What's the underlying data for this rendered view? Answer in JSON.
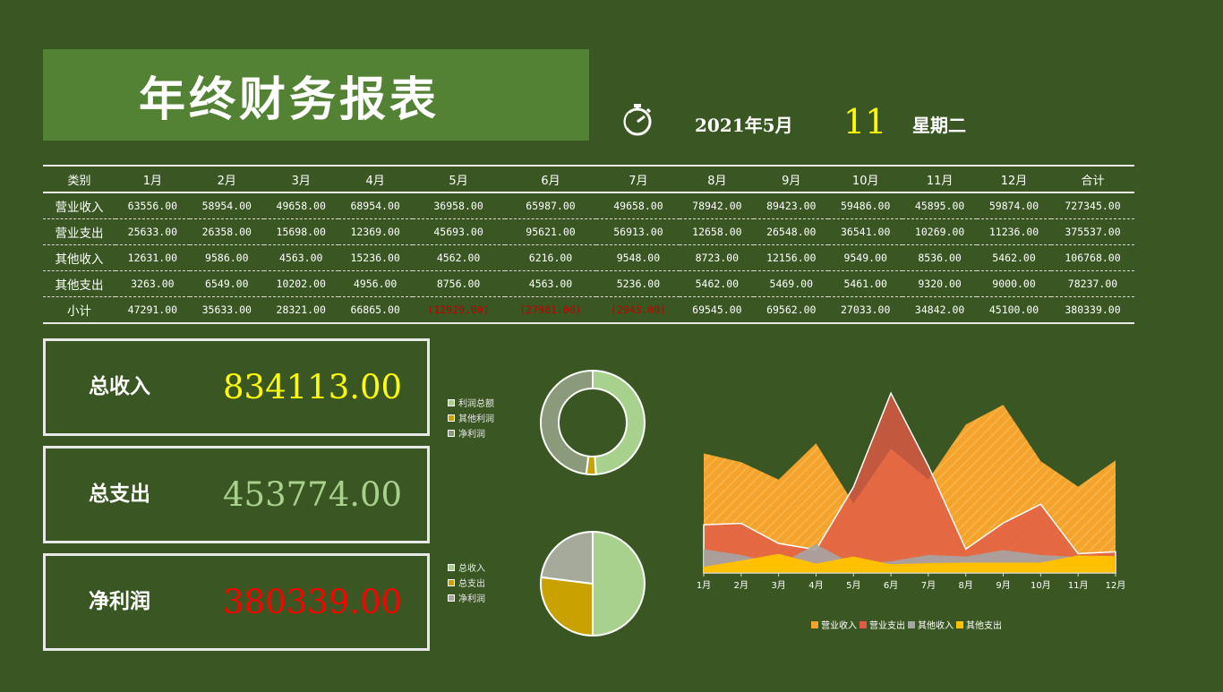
{
  "header": {
    "title": "年终财务报表",
    "date_text": "2021年5月",
    "day": "11",
    "weekday": "星期二"
  },
  "table": {
    "headers": [
      "类别",
      "1月",
      "2月",
      "3月",
      "4月",
      "5月",
      "6月",
      "7月",
      "8月",
      "9月",
      "10月",
      "11月",
      "12月",
      "合计"
    ],
    "rows": [
      {
        "label": "营业收入",
        "values": [
          "63556.00",
          "58954.00",
          "49658.00",
          "68954.00",
          "36958.00",
          "65987.00",
          "49658.00",
          "78942.00",
          "89423.00",
          "59486.00",
          "45895.00",
          "59874.00",
          "727345.00"
        ]
      },
      {
        "label": "营业支出",
        "values": [
          "25633.00",
          "26358.00",
          "15698.00",
          "12369.00",
          "45693.00",
          "95621.00",
          "56913.00",
          "12658.00",
          "26548.00",
          "36541.00",
          "10269.00",
          "11236.00",
          "375537.00"
        ]
      },
      {
        "label": "其他收入",
        "values": [
          "12631.00",
          "9586.00",
          "4563.00",
          "15236.00",
          "4562.00",
          "6216.00",
          "9548.00",
          "8723.00",
          "12156.00",
          "9549.00",
          "8536.00",
          "5462.00",
          "106768.00"
        ]
      },
      {
        "label": "其他支出",
        "values": [
          "3263.00",
          "6549.00",
          "10202.00",
          "4956.00",
          "8756.00",
          "4563.00",
          "5236.00",
          "5462.00",
          "5469.00",
          "5461.00",
          "9320.00",
          "9000.00",
          "78237.00"
        ]
      },
      {
        "label": "小计",
        "values": [
          "47291.00",
          "35633.00",
          "28321.00",
          "66865.00",
          "(12929.00)",
          "(27981.00)",
          "(2943.00)",
          "69545.00",
          "69562.00",
          "27033.00",
          "34842.00",
          "45100.00",
          "380339.00"
        ]
      }
    ]
  },
  "kpis": [
    {
      "label": "总收入",
      "value": "834113.00",
      "color": "#ffff00"
    },
    {
      "label": "总支出",
      "value": "453774.00",
      "color": "#a9d18e"
    },
    {
      "label": "净利润",
      "value": "380339.00",
      "color": "#ff0000"
    }
  ],
  "chart_data": [
    {
      "type": "pie",
      "variant": "doughnut",
      "legend_position": "left",
      "labels": [
        "利润总额",
        "其他利润",
        "净利润"
      ],
      "values": [
        49,
        3,
        48
      ],
      "colors": [
        "#a9d18e",
        "#c9a100",
        "#8a9a7a"
      ]
    },
    {
      "type": "pie",
      "legend_position": "left",
      "labels": [
        "总收入",
        "总支出",
        "净利润"
      ],
      "values": [
        50,
        27,
        23
      ],
      "colors": [
        "#a9d18e",
        "#c9a100",
        "#a5aa9a"
      ]
    },
    {
      "type": "area",
      "legend_position": "bottom",
      "grid": false,
      "categories": [
        "1月",
        "2月",
        "3月",
        "4月",
        "5月",
        "6月",
        "7月",
        "8月",
        "9月",
        "10月",
        "11月",
        "12月"
      ],
      "series": [
        {
          "name": "营业收入",
          "values": [
            63556,
            58954,
            49658,
            68954,
            36958,
            65987,
            49658,
            78942,
            89423,
            59486,
            45895,
            59874
          ],
          "color": "#f4a42c"
        },
        {
          "name": "营业支出",
          "values": [
            25633,
            26358,
            15698,
            12369,
            45693,
            95621,
            56913,
            12658,
            26548,
            36541,
            10269,
            11236
          ],
          "color": "#e05a45"
        },
        {
          "name": "其他收入",
          "values": [
            12631,
            9586,
            4563,
            15236,
            4562,
            6216,
            9548,
            8723,
            12156,
            9549,
            8536,
            5462
          ],
          "color": "#a5a5a5"
        },
        {
          "name": "其他支出",
          "values": [
            3263,
            6549,
            10202,
            4956,
            8756,
            4563,
            5236,
            5462,
            5469,
            5461,
            9320,
            9000
          ],
          "color": "#ffc000"
        }
      ],
      "ylim": [
        0,
        100000
      ]
    }
  ]
}
